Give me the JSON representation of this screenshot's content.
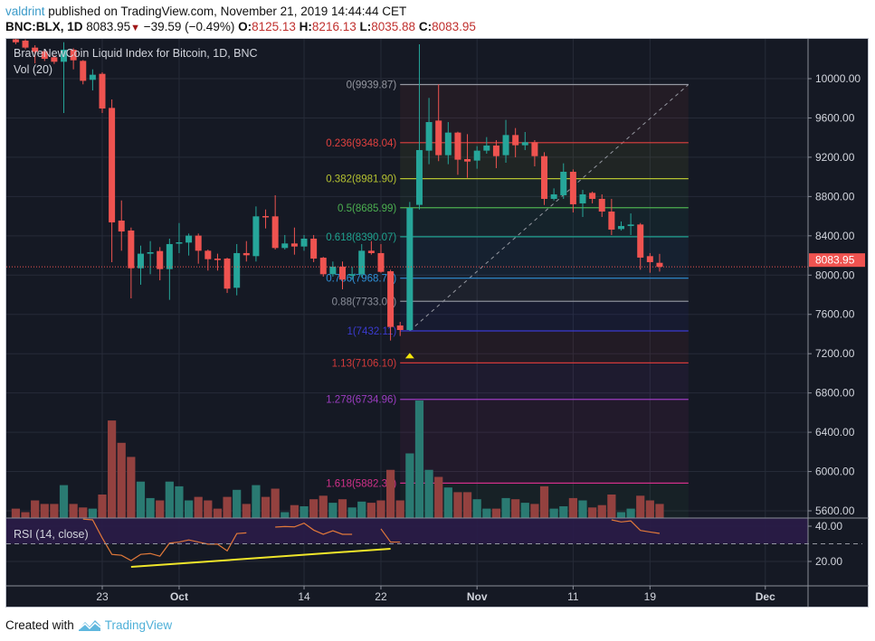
{
  "header": {
    "author": "valdrint",
    "published_text": " published on TradingView.com, November 21, 2019 14:44:44 CET",
    "symbol": "BNC:BLX, 1D",
    "last_price": "8083.95",
    "change": "−39.59 (−0.49%)",
    "change_direction_icon": "triangle-down",
    "o_label": "O:",
    "o_value": "8125.13",
    "h_label": "H:",
    "h_value": "8216.13",
    "l_label": "L:",
    "l_value": "8035.88",
    "c_label": "C:",
    "c_value": "8083.95"
  },
  "legend": {
    "series_title": "BraveNewCoin Liquid Index for Bitcoin, 1D, BNC",
    "volume_title": "Vol (20)",
    "rsi_title": "RSI (14, close)"
  },
  "footer": {
    "created_with": "Created with",
    "brand": "TradingView"
  },
  "colors": {
    "background": "#151924",
    "grid": "#262b38",
    "up": "#26a69a",
    "down": "#ef5350",
    "vol_up": "#2a7a72",
    "vol_down": "#93413f",
    "rsi_line": "#e0783a",
    "rsi_band": "#2a1c48",
    "trendline": "#f0e62a",
    "price_line": "#ef5350",
    "axis_text": "#d1d4dc"
  },
  "chart_data": {
    "type": "candlestick",
    "title": "BraveNewCoin Liquid Index for Bitcoin, 1D, BNC",
    "price_axis": {
      "ticks": [
        "10000.00",
        "9600.00",
        "9200.00",
        "8800.00",
        "8400.00",
        "8000.00",
        "7600.00",
        "7200.00",
        "6800.00",
        "6400.00",
        "6000.00",
        "5600.00"
      ],
      "range": [
        5520,
        10400
      ]
    },
    "time_axis": {
      "ticks": [
        {
          "date": "2019-09-23",
          "label": "23",
          "bold": false
        },
        {
          "date": "2019-10-01",
          "label": "Oct",
          "bold": true
        },
        {
          "date": "2019-10-14",
          "label": "14",
          "bold": false
        },
        {
          "date": "2019-10-22",
          "label": "22",
          "bold": false
        },
        {
          "date": "2019-11-01",
          "label": "Nov",
          "bold": true
        },
        {
          "date": "2019-11-11",
          "label": "11",
          "bold": false
        },
        {
          "date": "2019-11-19",
          "label": "19",
          "bold": false
        },
        {
          "date": "2019-12-01",
          "label": "Dec",
          "bold": true
        }
      ]
    },
    "grid": true,
    "current_price": {
      "value": 8083.95,
      "label": "8083.95"
    },
    "candle_columns": [
      "date",
      "open",
      "high",
      "low",
      "close",
      "volume_relative"
    ],
    "candles": [
      [
        "2019-09-14",
        10400,
        10430,
        10350,
        10370,
        8
      ],
      [
        "2019-09-15",
        10387,
        10400,
        10300,
        10316,
        5
      ],
      [
        "2019-09-16",
        10316,
        10340,
        10156,
        10273,
        15
      ],
      [
        "2019-09-17",
        10279,
        10300,
        10180,
        10202,
        12
      ],
      [
        "2019-09-18",
        10218,
        10240,
        10150,
        10172,
        12
      ],
      [
        "2019-09-19",
        10172,
        10371,
        9650,
        10295,
        28
      ],
      [
        "2019-09-20",
        10295,
        10310,
        10095,
        10187,
        12
      ],
      [
        "2019-09-21",
        10181,
        10190,
        9942,
        9978,
        9
      ],
      [
        "2019-09-22",
        9988,
        10095,
        9880,
        10040,
        8
      ],
      [
        "2019-09-23",
        10049,
        10065,
        9650,
        9696,
        20
      ],
      [
        "2019-09-24",
        9702,
        9788,
        8131,
        8537,
        83
      ],
      [
        "2019-09-25",
        8555,
        8760,
        8248,
        8444,
        64
      ],
      [
        "2019-09-26",
        8454,
        8484,
        7763,
        8070,
        52
      ],
      [
        "2019-09-27",
        8070,
        8300,
        7902,
        8218,
        31
      ],
      [
        "2019-09-28",
        8218,
        8346,
        8009,
        8233,
        17
      ],
      [
        "2019-09-29",
        8245,
        8285,
        7947,
        8061,
        15
      ],
      [
        "2019-09-30",
        8061,
        8371,
        7748,
        8316,
        31
      ],
      [
        "2019-10-01",
        8322,
        8530,
        8224,
        8334,
        27
      ],
      [
        "2019-10-02",
        8331,
        8423,
        8199,
        8402,
        15
      ],
      [
        "2019-10-03",
        8402,
        8423,
        8116,
        8248,
        18
      ],
      [
        "2019-10-04",
        8248,
        8260,
        8046,
        8162,
        15
      ],
      [
        "2019-10-05",
        8168,
        8218,
        8046,
        8153,
        8
      ],
      [
        "2019-10-06",
        8168,
        8177,
        7818,
        7862,
        18
      ],
      [
        "2019-10-07",
        7871,
        8316,
        7794,
        8224,
        24
      ],
      [
        "2019-10-08",
        8224,
        8346,
        8138,
        8202,
        12
      ],
      [
        "2019-10-09",
        8193,
        8699,
        8138,
        8598,
        28
      ],
      [
        "2019-10-10",
        8601,
        8668,
        8475,
        8592,
        18
      ],
      [
        "2019-10-11",
        8598,
        8813,
        8260,
        8276,
        25
      ],
      [
        "2019-10-12",
        8276,
        8408,
        8260,
        8322,
        5
      ],
      [
        "2019-10-13",
        8322,
        8484,
        8208,
        8291,
        11
      ],
      [
        "2019-10-14",
        8291,
        8408,
        8248,
        8371,
        10
      ],
      [
        "2019-10-15",
        8371,
        8408,
        8132,
        8168,
        16
      ],
      [
        "2019-10-16",
        8177,
        8185,
        7984,
        8009,
        19
      ],
      [
        "2019-10-17",
        8009,
        8138,
        7984,
        8086,
        13
      ],
      [
        "2019-10-18",
        8086,
        8138,
        7855,
        7954,
        16
      ],
      [
        "2019-10-19",
        7993,
        8086,
        7954,
        8009,
        9
      ],
      [
        "2019-10-20",
        8009,
        8316,
        7978,
        8248,
        14
      ],
      [
        "2019-10-21",
        8248,
        8346,
        8208,
        8224,
        13
      ],
      [
        "2019-10-22",
        8224,
        8316,
        8024,
        8033,
        15
      ],
      [
        "2019-10-23",
        8039,
        8055,
        7334,
        7472,
        41
      ],
      [
        "2019-10-24",
        7487,
        7524,
        7380,
        7441,
        15
      ],
      [
        "2019-10-25",
        7441,
        8745,
        7432,
        8684,
        55
      ],
      [
        "2019-10-26",
        8715,
        10350,
        8668,
        9273,
        100
      ],
      [
        "2019-10-27",
        9267,
        9804,
        9129,
        9558,
        41
      ],
      [
        "2019-10-28",
        9573,
        9942,
        9160,
        9221,
        35
      ],
      [
        "2019-10-29",
        9221,
        9558,
        9129,
        9451,
        26
      ],
      [
        "2019-10-30",
        9451,
        9460,
        9021,
        9175,
        22
      ],
      [
        "2019-10-31",
        9181,
        9435,
        8990,
        9156,
        22
      ],
      [
        "2019-11-01",
        9166,
        9313,
        9083,
        9267,
        16
      ],
      [
        "2019-11-02",
        9267,
        9405,
        9236,
        9319,
        8
      ],
      [
        "2019-11-03",
        9319,
        9374,
        9089,
        9211,
        8
      ],
      [
        "2019-11-04",
        9221,
        9580,
        9144,
        9426,
        17
      ],
      [
        "2019-11-05",
        9426,
        9497,
        9199,
        9322,
        16
      ],
      [
        "2019-11-06",
        9322,
        9457,
        9273,
        9353,
        13
      ],
      [
        "2019-11-07",
        9353,
        9374,
        9107,
        9211,
        12
      ],
      [
        "2019-11-08",
        9211,
        9251,
        8714,
        8776,
        27
      ],
      [
        "2019-11-09",
        8776,
        8883,
        8760,
        8822,
        8
      ],
      [
        "2019-11-10",
        8813,
        9138,
        8776,
        9052,
        10
      ],
      [
        "2019-11-11",
        9052,
        9076,
        8638,
        8721,
        17
      ],
      [
        "2019-11-12",
        8730,
        8868,
        8592,
        8822,
        15
      ],
      [
        "2019-11-13",
        8837,
        8850,
        8730,
        8776,
        9
      ],
      [
        "2019-11-14",
        8776,
        8822,
        8592,
        8647,
        11
      ],
      [
        "2019-11-15",
        8647,
        8776,
        8408,
        8463,
        20
      ],
      [
        "2019-11-16",
        8469,
        8546,
        8454,
        8500,
        5
      ],
      [
        "2019-11-17",
        8500,
        8628,
        8408,
        8515,
        8
      ],
      [
        "2019-11-18",
        8515,
        8530,
        8055,
        8178,
        19
      ],
      [
        "2019-11-19",
        8193,
        8224,
        8024,
        8132,
        15
      ],
      [
        "2019-11-20",
        8125.13,
        8216.13,
        8035.88,
        8083.95,
        12
      ]
    ],
    "rsi": {
      "title": "RSI (14, close)",
      "axis_ticks": [
        "40.00",
        "20.00"
      ],
      "oversold_level": 30,
      "values": [
        null,
        null,
        null,
        null,
        null,
        null,
        null,
        44,
        43.6,
        33.3,
        24,
        23.5,
        20.5,
        24,
        24.5,
        23,
        30.4,
        31,
        32.2,
        31,
        29.8,
        29.8,
        26,
        35.8,
        36.2,
        null,
        null,
        39.5,
        39.8,
        39.6,
        41.7,
        37.8,
        35.4,
        37.4,
        35.4,
        35.4,
        null,
        null,
        38.5,
        31,
        31,
        null,
        null,
        null,
        null,
        null,
        null,
        null,
        null,
        null,
        null,
        null,
        null,
        null,
        null,
        null,
        null,
        null,
        null,
        null,
        null,
        null,
        43.6,
        42.4,
        43,
        37.6,
        36.7,
        35.9
      ],
      "trendline": {
        "start": {
          "date": "2019-09-26",
          "value": 16.9
        },
        "end": {
          "date": "2019-10-23",
          "value": 27.2
        }
      }
    },
    "fibonacci": {
      "start": {
        "date": "2019-10-24",
        "price": 7432.11
      },
      "end": {
        "date": "2019-11-23",
        "price": 9939.87
      },
      "levels": [
        {
          "level": 0,
          "price": 9939.87,
          "label": "0(9939.87)",
          "color": "#9598a1"
        },
        {
          "level": 0.236,
          "price": 9348.04,
          "label": "0.236(9348.04)",
          "color": "#e0413f"
        },
        {
          "level": 0.382,
          "price": 8981.9,
          "label": "0.382(8981.90)",
          "color": "#b5c231"
        },
        {
          "level": 0.5,
          "price": 8685.99,
          "label": "0.5(8685.99)",
          "color": "#4caf50"
        },
        {
          "level": 0.618,
          "price": 8390.07,
          "label": "0.618(8390.07)",
          "color": "#1fa38f"
        },
        {
          "level": 0.786,
          "price": 7968.77,
          "label": "0.786(7968.77)",
          "color": "#2e8fd6"
        },
        {
          "level": 0.88,
          "price": 7733.04,
          "label": "0.88(7733.04)",
          "color": "#8a8e99"
        },
        {
          "level": 1,
          "price": 7432.11,
          "label": "1(7432.11)",
          "color": "#3b3bd0"
        },
        {
          "level": 1.13,
          "price": 7106.1,
          "label": "1.13(7106.10)",
          "color": "#d23a3a"
        },
        {
          "level": 1.278,
          "price": 6734.96,
          "label": "1.278(6734.96)",
          "color": "#9b3dc0"
        },
        {
          "level": 1.618,
          "price": 5882.32,
          "label": "1.618(5882.32)",
          "color": "#d0308a"
        }
      ]
    },
    "marker": {
      "date": "2019-10-25",
      "price": 7180,
      "shape": "triangle-up",
      "color": "#f5e50a"
    }
  }
}
